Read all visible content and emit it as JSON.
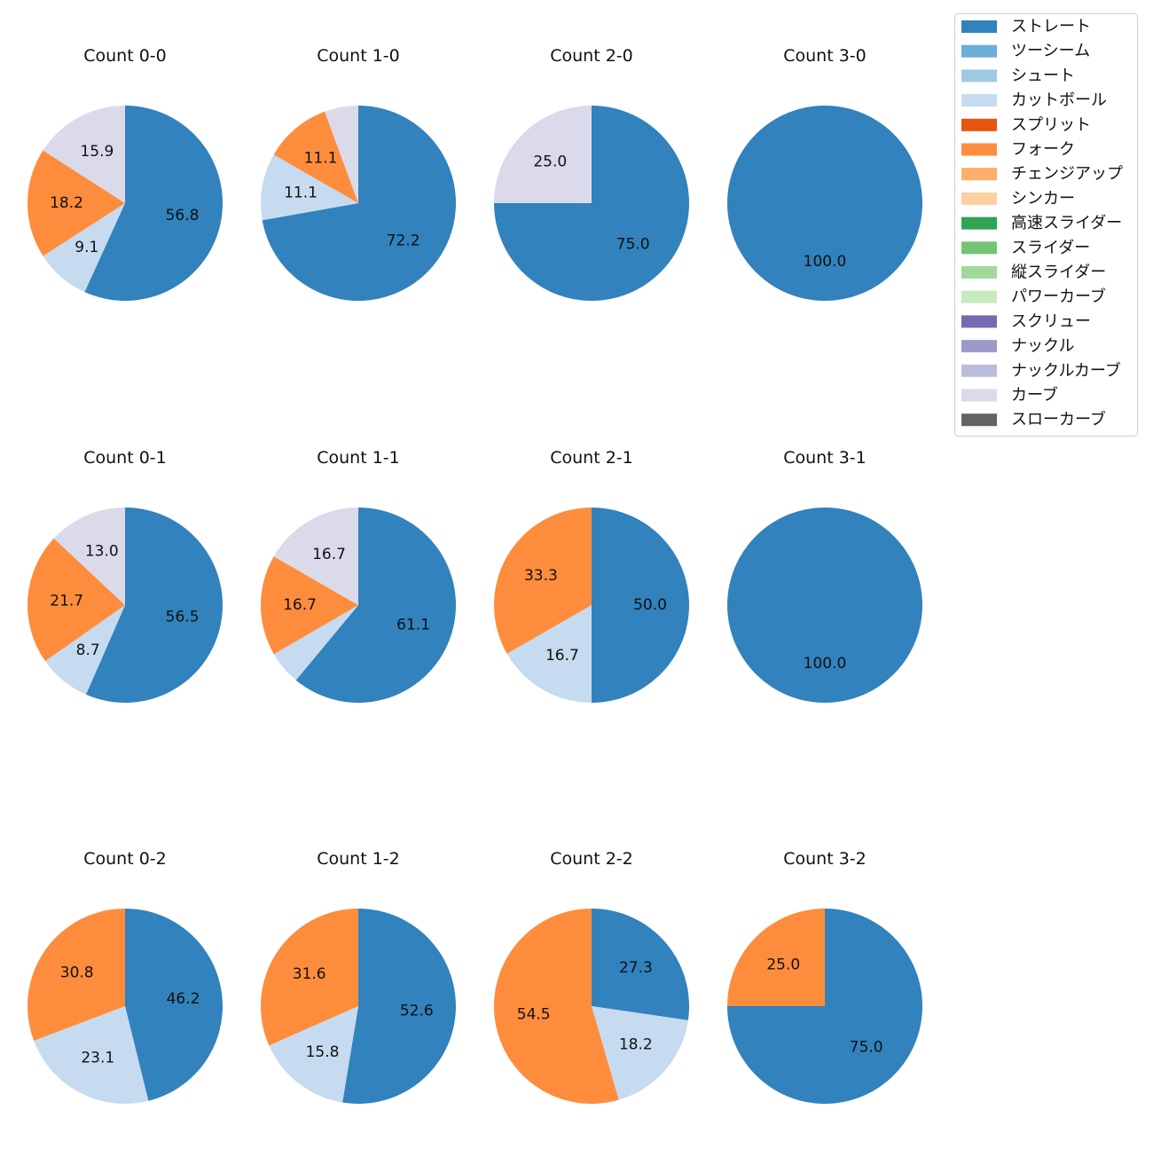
{
  "chart_data": {
    "type": "pie",
    "legend": {
      "placement": "top-right",
      "entries": [
        {
          "name": "ストレート",
          "color": "#3182bd"
        },
        {
          "name": "ツーシーム",
          "color": "#6baed6"
        },
        {
          "name": "シュート",
          "color": "#9ecae1"
        },
        {
          "name": "カットボール",
          "color": "#c6dbef"
        },
        {
          "name": "スプリット",
          "color": "#e6550d"
        },
        {
          "name": "フォーク",
          "color": "#fd8d3c"
        },
        {
          "name": "チェンジアップ",
          "color": "#fdae6b"
        },
        {
          "name": "シンカー",
          "color": "#fdd0a2"
        },
        {
          "name": "高速スライダー",
          "color": "#31a354"
        },
        {
          "name": "スライダー",
          "color": "#74c476"
        },
        {
          "name": "縦スライダー",
          "color": "#a1d99b"
        },
        {
          "name": "パワーカーブ",
          "color": "#c7e9c0"
        },
        {
          "name": "スクリュー",
          "color": "#756bb1"
        },
        {
          "name": "ナックル",
          "color": "#9e9ac8"
        },
        {
          "name": "ナックルカーブ",
          "color": "#bcbddc"
        },
        {
          "name": "カーブ",
          "color": "#dadaeb"
        },
        {
          "name": "スローカーブ",
          "color": "#636363"
        }
      ]
    },
    "pies": [
      {
        "title": "Count 0-0",
        "slices": [
          {
            "pitch": "ストレート",
            "value": 56.8,
            "label": "56.8"
          },
          {
            "pitch": "カットボール",
            "value": 9.1,
            "label": "9.1"
          },
          {
            "pitch": "フォーク",
            "value": 18.2,
            "label": "18.2"
          },
          {
            "pitch": "カーブ",
            "value": 15.9,
            "label": "15.9"
          }
        ]
      },
      {
        "title": "Count 1-0",
        "slices": [
          {
            "pitch": "ストレート",
            "value": 72.2,
            "label": "72.2"
          },
          {
            "pitch": "カットボール",
            "value": 11.1,
            "label": "11.1"
          },
          {
            "pitch": "フォーク",
            "value": 11.1,
            "label": "11.1"
          },
          {
            "pitch": "カーブ",
            "value": 5.6,
            "label": ""
          }
        ]
      },
      {
        "title": "Count 2-0",
        "slices": [
          {
            "pitch": "ストレート",
            "value": 75.0,
            "label": "75.0"
          },
          {
            "pitch": "カーブ",
            "value": 25.0,
            "label": "25.0"
          }
        ]
      },
      {
        "title": "Count 3-0",
        "slices": [
          {
            "pitch": "ストレート",
            "value": 100.0,
            "label": "100.0"
          }
        ]
      },
      {
        "title": "Count 0-1",
        "slices": [
          {
            "pitch": "ストレート",
            "value": 56.5,
            "label": "56.5"
          },
          {
            "pitch": "カットボール",
            "value": 8.7,
            "label": "8.7"
          },
          {
            "pitch": "フォーク",
            "value": 21.7,
            "label": "21.7"
          },
          {
            "pitch": "カーブ",
            "value": 13.0,
            "label": "13.0"
          }
        ]
      },
      {
        "title": "Count 1-1",
        "slices": [
          {
            "pitch": "ストレート",
            "value": 61.1,
            "label": "61.1"
          },
          {
            "pitch": "カットボール",
            "value": 5.6,
            "label": ""
          },
          {
            "pitch": "フォーク",
            "value": 16.7,
            "label": "16.7"
          },
          {
            "pitch": "カーブ",
            "value": 16.7,
            "label": "16.7"
          }
        ]
      },
      {
        "title": "Count 2-1",
        "slices": [
          {
            "pitch": "ストレート",
            "value": 50.0,
            "label": "50.0"
          },
          {
            "pitch": "カットボール",
            "value": 16.7,
            "label": "16.7"
          },
          {
            "pitch": "フォーク",
            "value": 33.3,
            "label": "33.3"
          }
        ]
      },
      {
        "title": "Count 3-1",
        "slices": [
          {
            "pitch": "ストレート",
            "value": 100.0,
            "label": "100.0"
          }
        ]
      },
      {
        "title": "Count 0-2",
        "slices": [
          {
            "pitch": "ストレート",
            "value": 46.2,
            "label": "46.2"
          },
          {
            "pitch": "カットボール",
            "value": 23.1,
            "label": "23.1"
          },
          {
            "pitch": "フォーク",
            "value": 30.8,
            "label": "30.8"
          }
        ]
      },
      {
        "title": "Count 1-2",
        "slices": [
          {
            "pitch": "ストレート",
            "value": 52.6,
            "label": "52.6"
          },
          {
            "pitch": "カットボール",
            "value": 15.8,
            "label": "15.8"
          },
          {
            "pitch": "フォーク",
            "value": 31.6,
            "label": "31.6"
          }
        ]
      },
      {
        "title": "Count 2-2",
        "slices": [
          {
            "pitch": "ストレート",
            "value": 27.3,
            "label": "27.3"
          },
          {
            "pitch": "カットボール",
            "value": 18.2,
            "label": "18.2"
          },
          {
            "pitch": "フォーク",
            "value": 54.5,
            "label": "54.5"
          }
        ]
      },
      {
        "title": "Count 3-2",
        "slices": [
          {
            "pitch": "ストレート",
            "value": 75.0,
            "label": "75.0"
          },
          {
            "pitch": "フォーク",
            "value": 25.0,
            "label": "25.0"
          }
        ]
      }
    ]
  }
}
